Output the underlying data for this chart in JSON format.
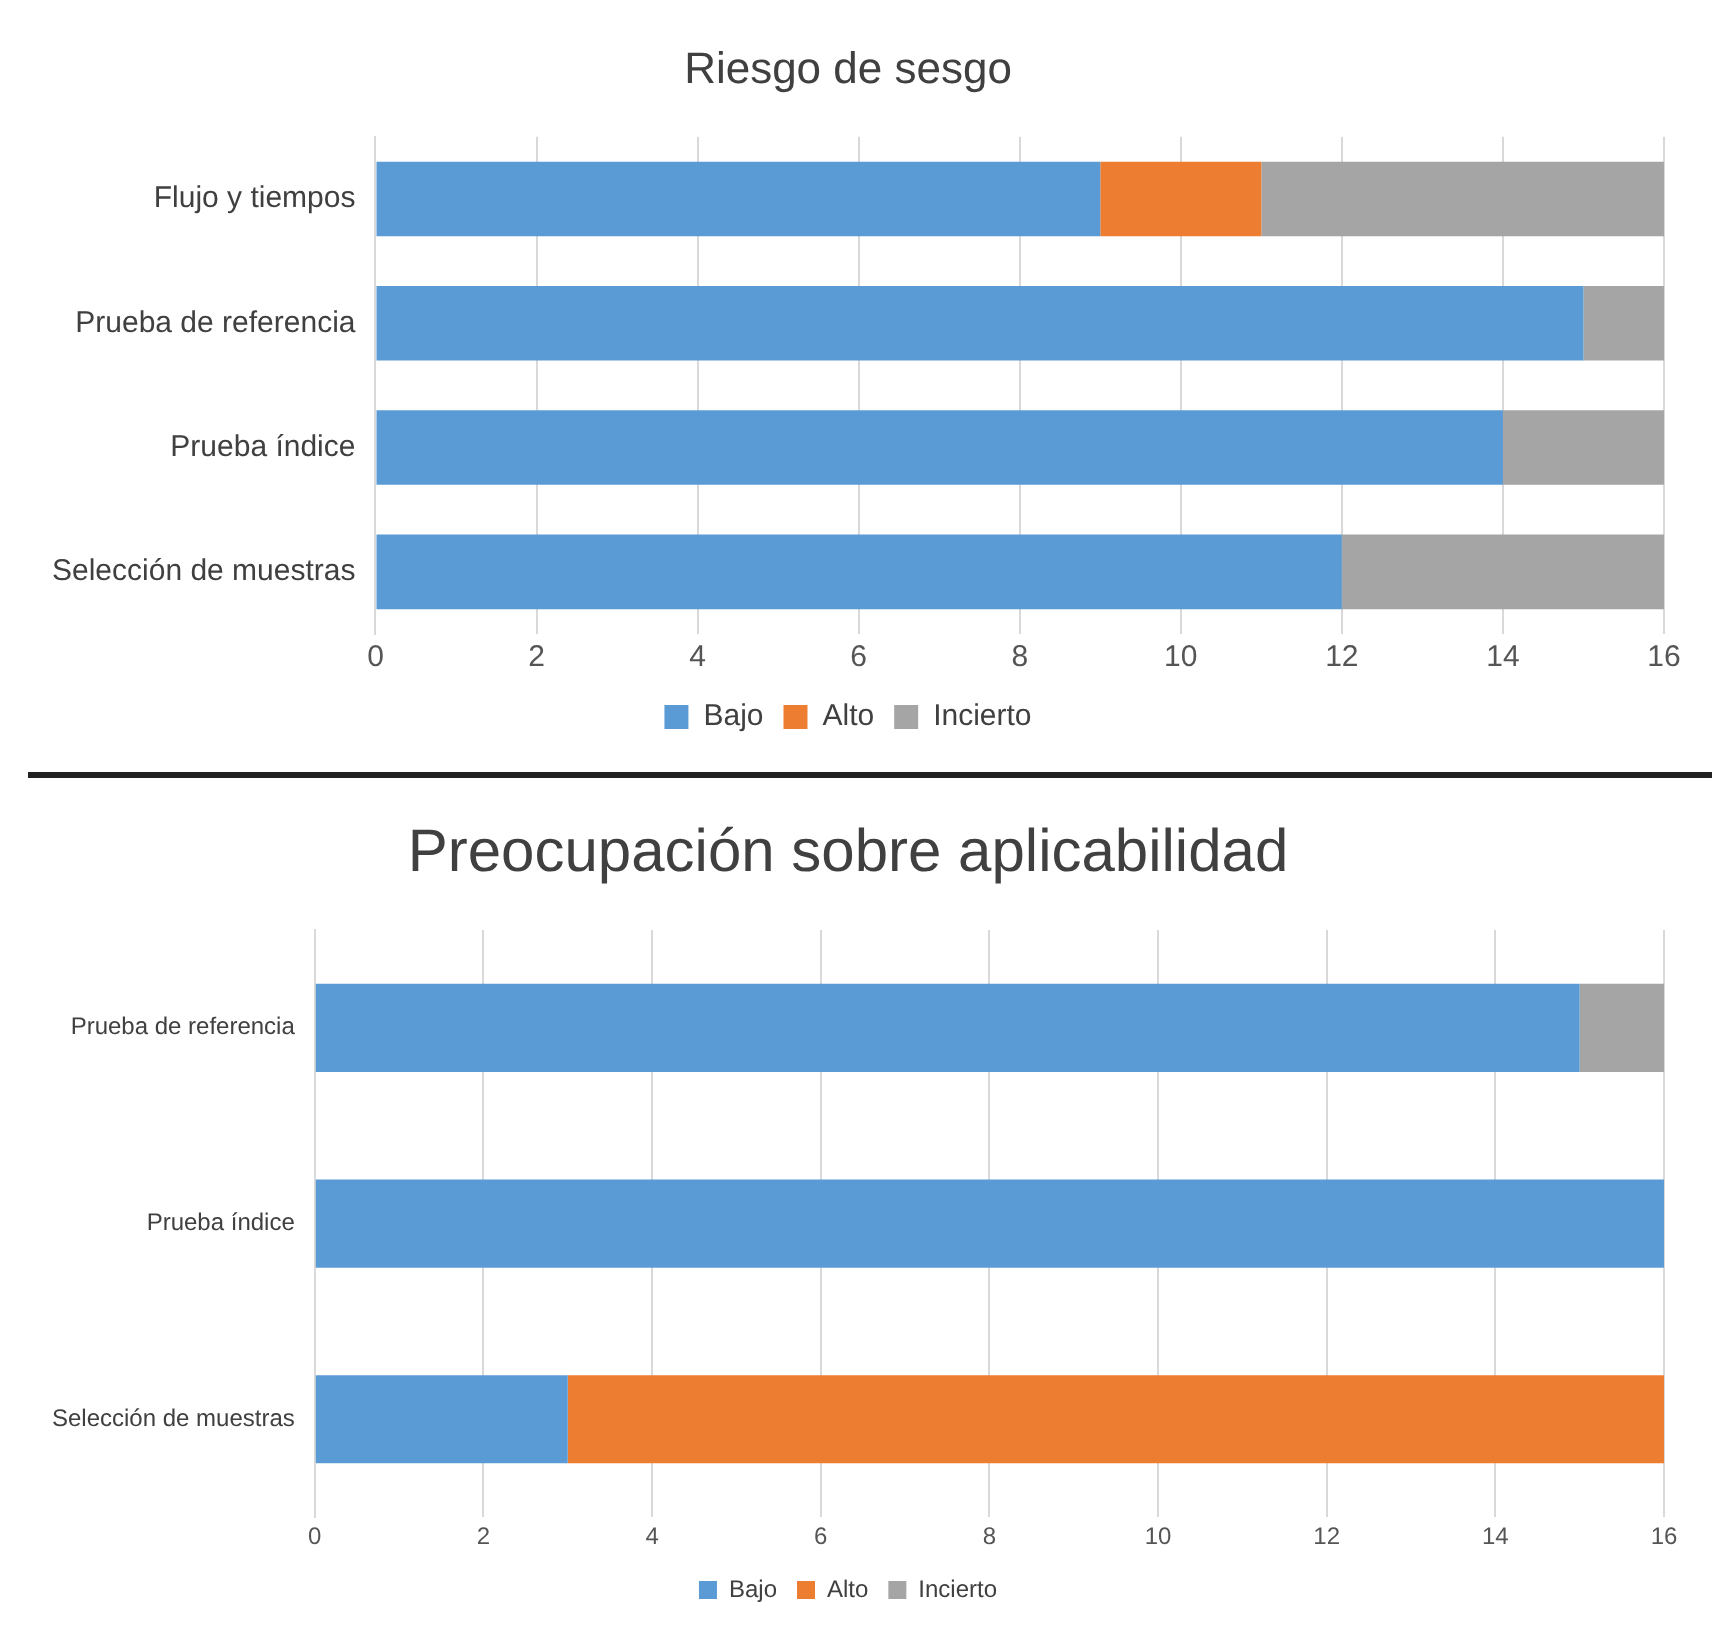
{
  "chart_data": [
    {
      "type": "bar",
      "orientation": "horizontal",
      "stacked": true,
      "title": "Riesgo de sesgo",
      "categories": [
        "Flujo y tiempos",
        "Prueba de referencia",
        "Prueba índice",
        "Selección de muestras"
      ],
      "series": [
        {
          "name": "Bajo",
          "color": "#5b9bd5",
          "values": [
            9,
            15,
            14,
            12
          ]
        },
        {
          "name": "Alto",
          "color": "#ed7d31",
          "values": [
            2,
            0,
            0,
            0
          ]
        },
        {
          "name": "Incierto",
          "color": "#a5a5a5",
          "values": [
            5,
            1,
            2,
            4
          ]
        }
      ],
      "xlim": [
        0,
        16
      ],
      "xticks": [
        0,
        2,
        4,
        6,
        8,
        10,
        12,
        14,
        16
      ],
      "grid": "x",
      "legend": "bottom"
    },
    {
      "type": "bar",
      "orientation": "horizontal",
      "stacked": true,
      "title": "Preocupación sobre aplicabilidad",
      "categories": [
        "Prueba de referencia",
        "Prueba índice",
        "Selección de muestras"
      ],
      "series": [
        {
          "name": "Bajo",
          "color": "#5b9bd5",
          "values": [
            15,
            16,
            3
          ]
        },
        {
          "name": "Alto",
          "color": "#ed7d31",
          "values": [
            0,
            0,
            13
          ]
        },
        {
          "name": "Incierto",
          "color": "#a5a5a5",
          "values": [
            1,
            0,
            0
          ]
        }
      ],
      "xlim": [
        0,
        16
      ],
      "xticks": [
        0,
        2,
        4,
        6,
        8,
        10,
        12,
        14,
        16
      ],
      "grid": "x",
      "legend": "bottom"
    }
  ]
}
